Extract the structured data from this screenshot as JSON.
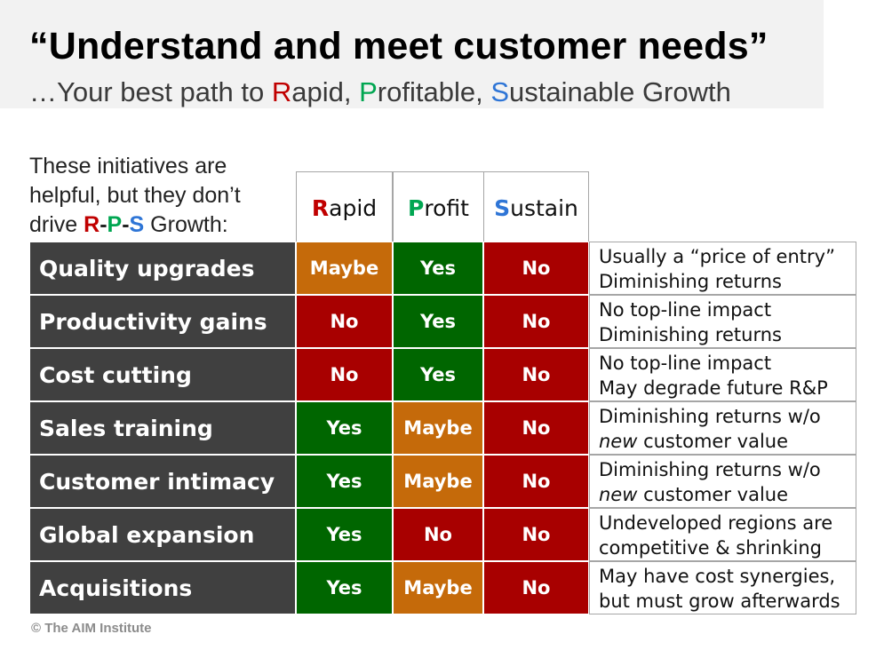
{
  "title": "“Understand and meet customer needs”",
  "subtitle": {
    "prefix": "…Your best path to ",
    "r_letter": "R",
    "r_rest": "apid, ",
    "p_letter": "P",
    "p_rest": "rofitable, ",
    "s_letter": "S",
    "s_rest": "ustainable Growth"
  },
  "intro": {
    "line1": "These initiatives are",
    "line2": "helpful, but they don’t",
    "line3_prefix": "drive ",
    "r": "R",
    "dash1": "-",
    "p": "P",
    "dash2": "-",
    "s": "S",
    "line3_suffix": " Growth:"
  },
  "headers": [
    {
      "first": "R",
      "rest": "apid",
      "color": "#c00000"
    },
    {
      "first": "P",
      "rest": "rofit",
      "color": "#00a651"
    },
    {
      "first": "S",
      "rest": "ustain",
      "color": "#2e75d6"
    }
  ],
  "colors": {
    "yes": "#006600",
    "no": "#a80000",
    "maybe": "#c56a0a",
    "label_bg": "#404040"
  },
  "rows": [
    {
      "label": "Quality upgrades",
      "rapid": "Maybe",
      "profit": "Yes",
      "sustain": "No",
      "note1_a": "Usually a “price of entry”",
      "note1_b": "",
      "note2_a": "Diminishing returns",
      "note2_b": ""
    },
    {
      "label": "Productivity gains",
      "rapid": "No",
      "profit": "Yes",
      "sustain": "No",
      "note1_a": "No top-line impact",
      "note1_b": "",
      "note2_a": "Diminishing returns",
      "note2_b": ""
    },
    {
      "label": "Cost cutting",
      "rapid": "No",
      "profit": "Yes",
      "sustain": "No",
      "note1_a": "No top-line impact",
      "note1_b": "",
      "note2_a": "May degrade future R&P",
      "note2_b": ""
    },
    {
      "label": "Sales training",
      "rapid": "Yes",
      "profit": "Maybe",
      "sustain": "No",
      "note1_a": "Diminishing returns w/o",
      "note1_b": "",
      "note2_a": "new",
      "note2_b": " customer value"
    },
    {
      "label": "Customer intimacy",
      "rapid": "Yes",
      "profit": "Maybe",
      "sustain": "No",
      "note1_a": "Diminishing returns w/o",
      "note1_b": "",
      "note2_a": "new",
      "note2_b": " customer value"
    },
    {
      "label": "Global expansion",
      "rapid": "Yes",
      "profit": "No",
      "sustain": "No",
      "note1_a": "Undeveloped regions are",
      "note1_b": "",
      "note2_a": "competitive & shrinking",
      "note2_b": ""
    },
    {
      "label": "Acquisitions",
      "rapid": "Yes",
      "profit": "Maybe",
      "sustain": "No",
      "note1_a": "May have cost synergies,",
      "note1_b": "",
      "note2_a": "but must grow afterwards",
      "note2_b": ""
    }
  ],
  "footer": "© The AIM Institute"
}
